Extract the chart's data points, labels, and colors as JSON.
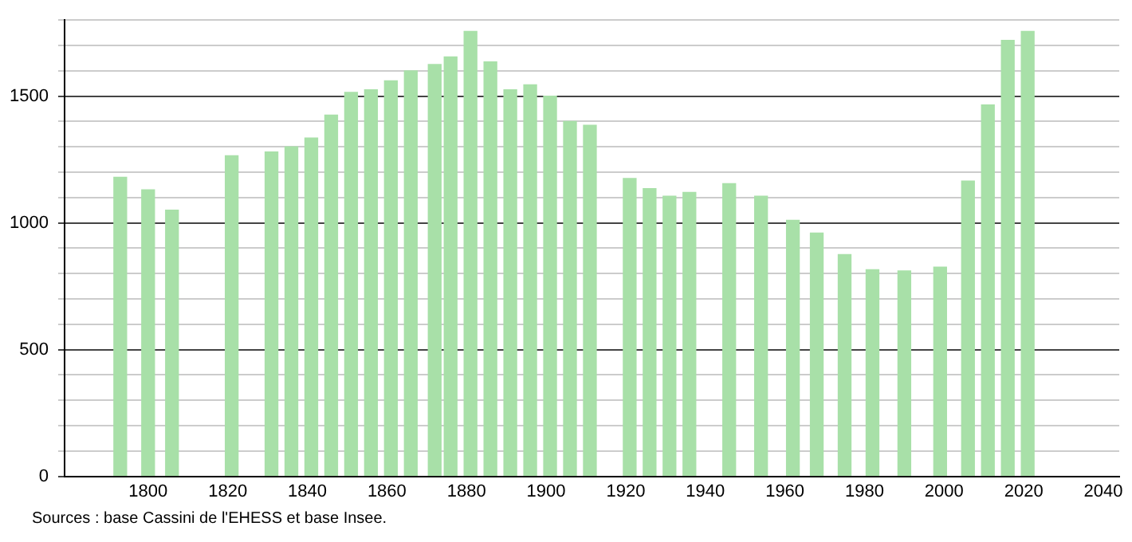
{
  "chart_data": {
    "type": "bar",
    "x": [
      1793,
      1800,
      1806,
      1821,
      1831,
      1836,
      1841,
      1846,
      1851,
      1856,
      1861,
      1866,
      1872,
      1876,
      1881,
      1886,
      1891,
      1896,
      1901,
      1906,
      1911,
      1921,
      1926,
      1931,
      1936,
      1946,
      1954,
      1962,
      1968,
      1975,
      1982,
      1990,
      1999,
      2006,
      2011,
      2016,
      2021
    ],
    "values": [
      1180,
      1130,
      1050,
      1265,
      1280,
      1300,
      1335,
      1425,
      1515,
      1525,
      1560,
      1600,
      1625,
      1655,
      1755,
      1635,
      1525,
      1545,
      1500,
      1400,
      1385,
      1175,
      1135,
      1105,
      1120,
      1155,
      1105,
      1010,
      960,
      875,
      815,
      810,
      825,
      1165,
      1465,
      1720,
      1755
    ],
    "color": "#a8e0a8",
    "xlim": [
      1779,
      2044
    ],
    "xticks": [
      1800,
      1820,
      1840,
      1860,
      1880,
      1900,
      1920,
      1940,
      1960,
      1980,
      2000,
      2020,
      2040
    ],
    "ylim": [
      0,
      1800
    ],
    "yticks": [
      0,
      {
        "value": 100,
        "label": null
      },
      {
        "value": 200,
        "label": null
      },
      {
        "value": 300,
        "label": null
      },
      {
        "value": 400,
        "label": null
      },
      500,
      {
        "value": 600,
        "label": null
      },
      {
        "value": 700,
        "label": null
      },
      {
        "value": 800,
        "label": null
      },
      {
        "value": 900,
        "label": null
      },
      1000,
      {
        "value": 1100,
        "label": null
      },
      {
        "value": 1200,
        "label": null
      },
      {
        "value": 1300,
        "label": null
      },
      {
        "value": 1400,
        "label": null
      },
      1500,
      {
        "value": 1600,
        "label": null
      },
      {
        "value": 1700,
        "label": null
      },
      {
        "value": 1800,
        "label": null
      }
    ],
    "grid": "y",
    "annotations": [
      "Sources : base Cassini de l'EHESS et base Insee."
    ]
  }
}
